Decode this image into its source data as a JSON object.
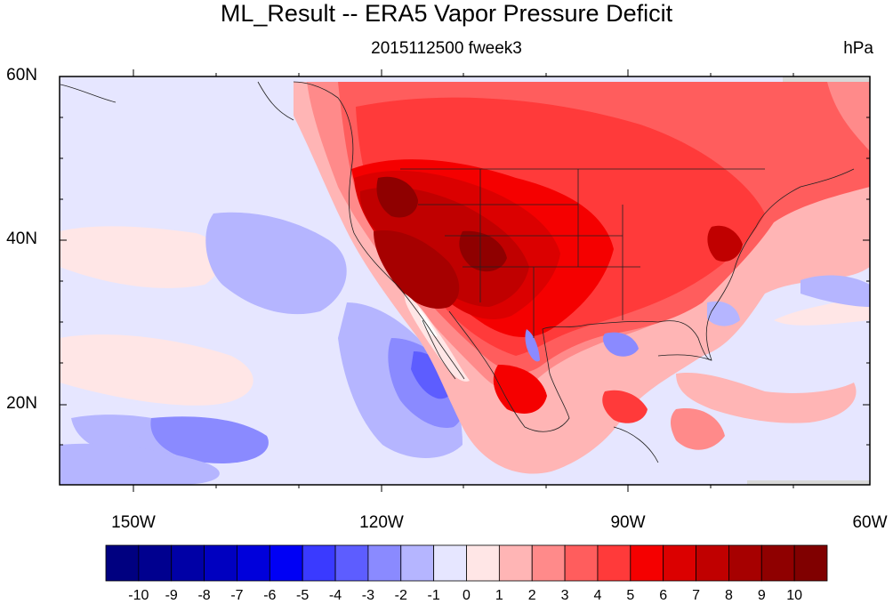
{
  "title": "ML_Result -- ERA5 Vapor Pressure Deficit",
  "subtitle": "2015112500 fweek3",
  "units": "hPa",
  "map": {
    "lon_range": [
      -160,
      -60
    ],
    "lat_range": [
      10,
      60
    ],
    "lat_ticks": [
      {
        "value": 60,
        "label": "60N"
      },
      {
        "value": 40,
        "label": "40N"
      },
      {
        "value": 20,
        "label": "20N"
      }
    ],
    "lon_ticks": [
      {
        "value": -150,
        "label": "150W"
      },
      {
        "value": -120,
        "label": "120W"
      },
      {
        "value": -90,
        "label": "90W"
      },
      {
        "value": -60,
        "label": "60W"
      }
    ]
  },
  "colorbar": {
    "labels": [
      "-10",
      "-9",
      "-8",
      "-7",
      "-6",
      "-5",
      "-4",
      "-3",
      "-2",
      "-1",
      "0",
      "1",
      "2",
      "3",
      "4",
      "5",
      "6",
      "7",
      "8",
      "9",
      "10"
    ],
    "colors": [
      "#000080",
      "#00008f",
      "#0000a6",
      "#0000c0",
      "#0000db",
      "#0000f5",
      "#3a3aff",
      "#5d5dff",
      "#8a8aff",
      "#b5b5ff",
      "#e6e6ff",
      "#ffe6e6",
      "#ffb5b5",
      "#ff8a8a",
      "#ff5d5d",
      "#ff3a3a",
      "#f50000",
      "#db0000",
      "#c00000",
      "#a60000",
      "#8f0000",
      "#800000"
    ]
  }
}
